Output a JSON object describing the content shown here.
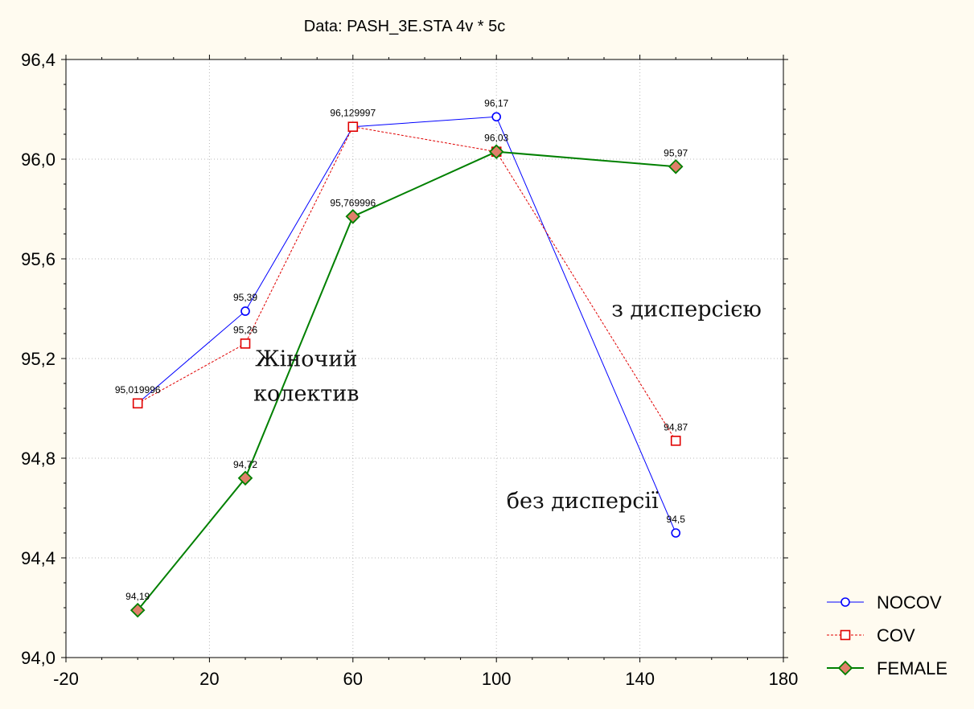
{
  "chart_data": {
    "type": "line",
    "title": "Data: PASH_3E.STA 4v * 5c",
    "xlabel": "",
    "ylabel": "",
    "xlim": [
      -20,
      180
    ],
    "ylim": [
      94.0,
      96.4
    ],
    "x_ticks": [
      "-20",
      "20",
      "60",
      "100",
      "140",
      "180"
    ],
    "x_tick_values": [
      -20,
      20,
      60,
      100,
      140,
      180
    ],
    "y_ticks": [
      "94,0",
      "94,4",
      "94,8",
      "95,2",
      "95,6",
      "96,0",
      "96,4"
    ],
    "y_tick_values": [
      94.0,
      94.4,
      94.8,
      95.2,
      95.6,
      96.0,
      96.4
    ],
    "grid": true,
    "legend_position": "bottom-right",
    "x": [
      0,
      30,
      60,
      100,
      150
    ],
    "series": [
      {
        "name": "NOCOV",
        "values": [
          95.02,
          95.39,
          96.13,
          96.17,
          94.5
        ],
        "labels": [
          "",
          "95,39",
          "",
          "96,17",
          "94,5"
        ],
        "color": "#0000ff",
        "line_style": "solid",
        "marker": "circle"
      },
      {
        "name": "COV",
        "values": [
          95.019996,
          95.26,
          96.129997,
          96.03,
          94.87
        ],
        "labels": [
          "95,019996",
          "95,26",
          "96,129997",
          "",
          "94,87"
        ],
        "color": "#e00000",
        "line_style": "dotted",
        "marker": "square"
      },
      {
        "name": "FEMALE",
        "values": [
          94.19,
          94.72,
          95.769996,
          96.03,
          95.97
        ],
        "labels": [
          "94,19",
          "94,72",
          "95,769996",
          "96,03",
          "95,97"
        ],
        "color": "#008000",
        "line_style": "solid",
        "marker": "diamond",
        "marker_fill": "#e07f6a"
      }
    ],
    "annotations": [
      {
        "text": "Жіночий",
        "x": 47,
        "y": 95.17
      },
      {
        "text": "колектив",
        "x": 47,
        "y": 95.03
      },
      {
        "text": "з дисперсією",
        "x": 153,
        "y": 95.37
      },
      {
        "text": "без дисперсії",
        "x": 124,
        "y": 94.6
      }
    ]
  }
}
